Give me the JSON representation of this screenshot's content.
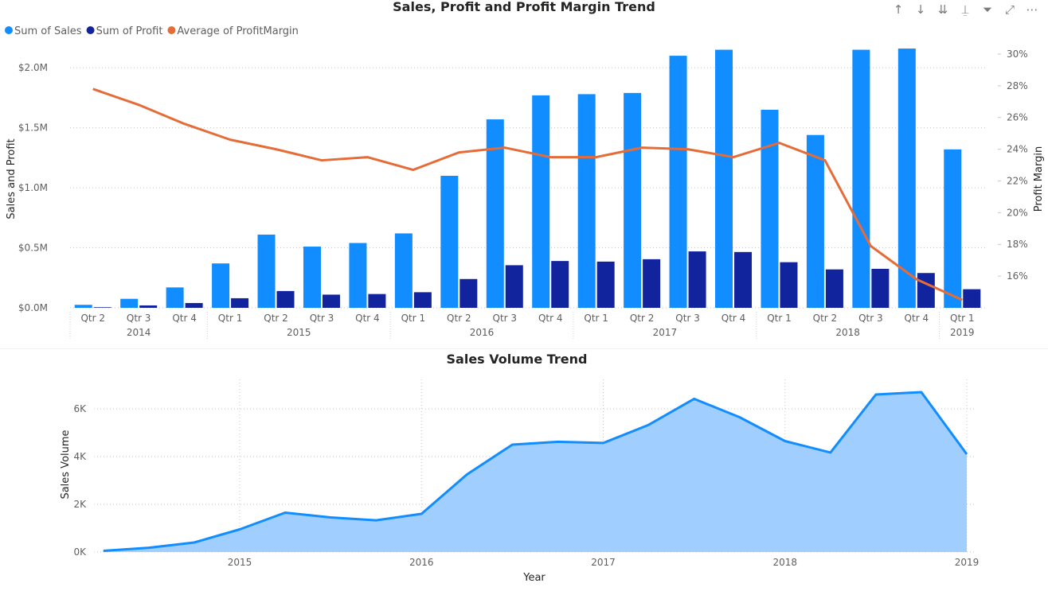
{
  "header_icons": [
    {
      "name": "drill-up-icon",
      "glyph": "↑"
    },
    {
      "name": "drill-down-icon",
      "glyph": "↓"
    },
    {
      "name": "expand-next-level-icon",
      "glyph": "⇊"
    },
    {
      "name": "expand-hierarchy-icon",
      "glyph": "⍊"
    },
    {
      "name": "filter-icon",
      "glyph": "⏷"
    },
    {
      "name": "focus-mode-icon",
      "glyph": "⤢"
    },
    {
      "name": "more-options-icon",
      "glyph": "⋯"
    }
  ],
  "chart_data": [
    {
      "type": "bar",
      "title": "Sales, Profit and Profit Margin Trend",
      "ylabel": "Sales and Profit",
      "y2label": "Profit Margin",
      "ylim": [
        0,
        2200000
      ],
      "y2lim": [
        14,
        30.5
      ],
      "yticks": [
        "$0.0M",
        "$0.5M",
        "$1.0M",
        "$1.5M",
        "$2.0M"
      ],
      "ytick_values": [
        0,
        500000,
        1000000,
        1500000,
        2000000
      ],
      "y2ticks": [
        "16%",
        "18%",
        "20%",
        "22%",
        "24%",
        "26%",
        "28%",
        "30%"
      ],
      "y2tick_values": [
        16,
        18,
        20,
        22,
        24,
        26,
        28,
        30
      ],
      "categories": [
        "Qtr 2",
        "Qtr 3",
        "Qtr 4",
        "Qtr 1",
        "Qtr 2",
        "Qtr 3",
        "Qtr 4",
        "Qtr 1",
        "Qtr 2",
        "Qtr 3",
        "Qtr 4",
        "Qtr 1",
        "Qtr 2",
        "Qtr 3",
        "Qtr 4",
        "Qtr 1",
        "Qtr 2",
        "Qtr 3",
        "Qtr 4",
        "Qtr 1"
      ],
      "year_groups": [
        {
          "label": "2014",
          "count": 3
        },
        {
          "label": "2015",
          "count": 4
        },
        {
          "label": "2016",
          "count": 4
        },
        {
          "label": "2017",
          "count": 4
        },
        {
          "label": "2018",
          "count": 4
        },
        {
          "label": "2019",
          "count": 1
        }
      ],
      "legend_position": "top-left",
      "grid": true,
      "series": [
        {
          "name": "Sum of Sales",
          "kind": "bar",
          "axis": "left",
          "color": "#118DFF",
          "values": [
            25000,
            75000,
            170000,
            370000,
            610000,
            510000,
            540000,
            620000,
            1100000,
            1570000,
            1770000,
            1780000,
            1790000,
            2100000,
            2150000,
            1650000,
            1440000,
            2150000,
            2160000,
            1320000
          ]
        },
        {
          "name": "Sum of Profit",
          "kind": "bar",
          "axis": "left",
          "color": "#12239E",
          "values": [
            5000,
            20000,
            40000,
            80000,
            140000,
            110000,
            115000,
            130000,
            240000,
            355000,
            390000,
            385000,
            405000,
            470000,
            465000,
            380000,
            320000,
            325000,
            290000,
            155000
          ]
        },
        {
          "name": "Average of ProfitMargin",
          "kind": "line",
          "axis": "right",
          "color": "#E66C37",
          "values": [
            27.8,
            26.8,
            25.6,
            24.6,
            24.0,
            23.3,
            23.5,
            22.7,
            23.8,
            24.1,
            23.5,
            23.5,
            24.1,
            24.0,
            23.5,
            24.4,
            23.3,
            17.9,
            15.8,
            14.5
          ]
        }
      ]
    },
    {
      "type": "area",
      "title": "Sales Volume Trend",
      "xlabel": "Year",
      "ylabel": "Sales Volume",
      "ylim": [
        0,
        7000
      ],
      "yticks": [
        "0K",
        "2K",
        "4K",
        "6K"
      ],
      "ytick_values": [
        0,
        2000,
        4000,
        6000
      ],
      "xticks": [
        "2015",
        "2016",
        "2017",
        "2018",
        "2019"
      ],
      "xtick_values": [
        2015,
        2016,
        2017,
        2018,
        2019
      ],
      "xlim": [
        2014.25,
        2019.05
      ],
      "grid": true,
      "color": "#118DFF",
      "fill": "#A0CFFF",
      "x": [
        2014.25,
        2014.5,
        2014.75,
        2015.0,
        2015.25,
        2015.5,
        2015.75,
        2016.0,
        2016.25,
        2016.5,
        2016.75,
        2017.0,
        2017.25,
        2017.5,
        2017.75,
        2018.0,
        2018.25,
        2018.5,
        2018.75,
        2019.0
      ],
      "values": [
        50,
        180,
        400,
        950,
        1650,
        1450,
        1330,
        1600,
        3250,
        4500,
        4620,
        4570,
        5330,
        6420,
        5650,
        4650,
        4170,
        6600,
        6700,
        4100
      ]
    }
  ]
}
